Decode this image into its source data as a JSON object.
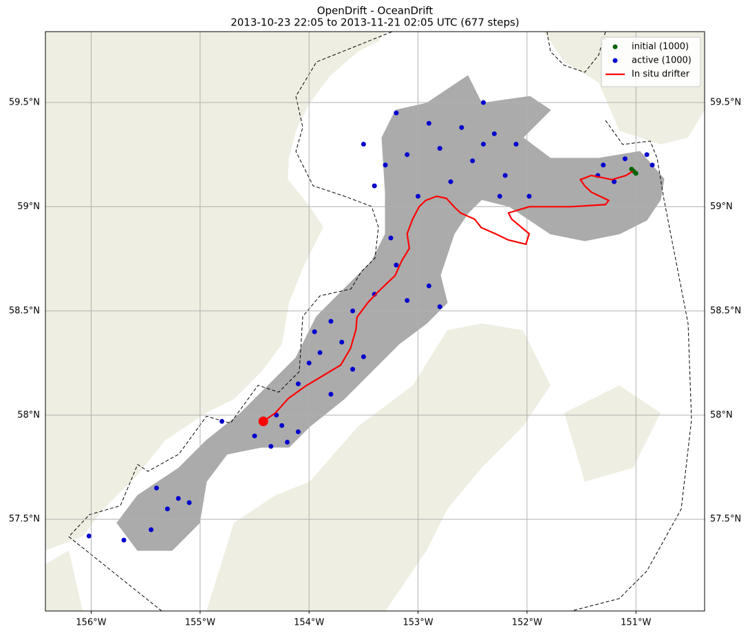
{
  "chart_data": {
    "type": "map",
    "title": "OpenDrift - OceanDrift",
    "subtitle": "2013-10-23 22:05 to 2013-11-21 02:05 UTC (677 steps)",
    "xlim": [
      -156.42,
      -150.37
    ],
    "ylim": [
      57.06,
      59.84
    ],
    "xticks": [
      {
        "value": -156,
        "label": "156°W"
      },
      {
        "value": -155,
        "label": "155°W"
      },
      {
        "value": -154,
        "label": "154°W"
      },
      {
        "value": -153,
        "label": "153°W"
      },
      {
        "value": -152,
        "label": "152°W"
      },
      {
        "value": -151,
        "label": "151°W"
      }
    ],
    "yticks": [
      {
        "value": 57.5,
        "label": "57.5°N"
      },
      {
        "value": 58,
        "label": "58°N"
      },
      {
        "value": 58.5,
        "label": "58.5°N"
      },
      {
        "value": 59,
        "label": "59°N"
      },
      {
        "value": 59.5,
        "label": "59.5°N"
      }
    ],
    "grid": true,
    "legend": "upper right",
    "series": [
      {
        "name": "initial (1000)",
        "color": "#006400",
        "type": "scatter",
        "x": [
          -151.02,
          -151.0,
          -151.04
        ],
        "y": [
          59.17,
          59.16,
          59.18
        ]
      },
      {
        "name": "active (1000)",
        "color": "#0000cd",
        "type": "scatter",
        "x": [
          -153.2,
          -152.9,
          -152.6,
          -152.3,
          -152.1,
          -152.4,
          -152.8,
          -153.1,
          -153.3,
          -152.5,
          -152.2,
          -153.4,
          -153.0,
          -152.7,
          -152.4,
          -151.98,
          -152.25,
          -153.5,
          -153.25,
          -153.2,
          -153.1,
          -152.8,
          -152.9,
          -153.4,
          -153.6,
          -153.8,
          -153.95,
          -153.7,
          -153.9,
          -154.0,
          -153.6,
          -153.5,
          -154.1,
          -153.8,
          -154.3,
          -154.25,
          -154.5,
          -154.2,
          -154.1,
          -154.35,
          -154.8,
          -155.2,
          -155.3,
          -155.1,
          -155.45,
          -155.7,
          -156.02,
          -155.4,
          -151.35,
          -151.3,
          -151.2,
          -150.85,
          -150.9,
          -151.1
        ],
        "y": [
          59.45,
          59.4,
          59.38,
          59.35,
          59.3,
          59.5,
          59.28,
          59.25,
          59.2,
          59.22,
          59.15,
          59.1,
          59.05,
          59.12,
          59.3,
          59.05,
          59.05,
          59.3,
          58.85,
          58.72,
          58.55,
          58.52,
          58.62,
          58.58,
          58.5,
          58.45,
          58.4,
          58.35,
          58.3,
          58.25,
          58.22,
          58.28,
          58.15,
          58.1,
          58.0,
          57.95,
          57.9,
          57.87,
          57.92,
          57.85,
          57.97,
          57.6,
          57.55,
          57.58,
          57.45,
          57.4,
          57.42,
          57.65,
          59.15,
          59.2,
          59.12,
          59.2,
          59.25,
          59.23
        ]
      },
      {
        "name": "In situ drifter",
        "color": "#ff0000",
        "type": "line",
        "x": [
          -151.03,
          -151.09,
          -151.22,
          -151.41,
          -151.51,
          -151.47,
          -151.41,
          -151.25,
          -151.28,
          -151.6,
          -151.98,
          -152.17,
          -152.14,
          -151.98,
          -152.01,
          -152.17,
          -152.29,
          -152.42,
          -152.48,
          -152.61,
          -152.67,
          -152.74,
          -152.83,
          -152.93,
          -152.99,
          -153.05,
          -153.1,
          -153.08,
          -153.15,
          -153.21,
          -153.27,
          -153.37,
          -153.46,
          -153.56,
          -153.57,
          -153.62,
          -153.71,
          -153.87,
          -154.03,
          -154.19,
          -154.31,
          -154.42
        ],
        "y": [
          59.17,
          59.15,
          59.13,
          59.15,
          59.13,
          59.1,
          59.07,
          59.03,
          59.01,
          59.0,
          59.0,
          58.97,
          58.94,
          58.87,
          58.82,
          58.84,
          58.87,
          58.9,
          58.94,
          58.97,
          59.0,
          59.04,
          59.05,
          59.03,
          59.0,
          58.94,
          58.87,
          58.8,
          58.74,
          58.67,
          58.64,
          58.59,
          58.54,
          58.47,
          58.41,
          58.32,
          58.24,
          58.19,
          58.14,
          58.08,
          58.01,
          57.97
        ]
      }
    ]
  }
}
